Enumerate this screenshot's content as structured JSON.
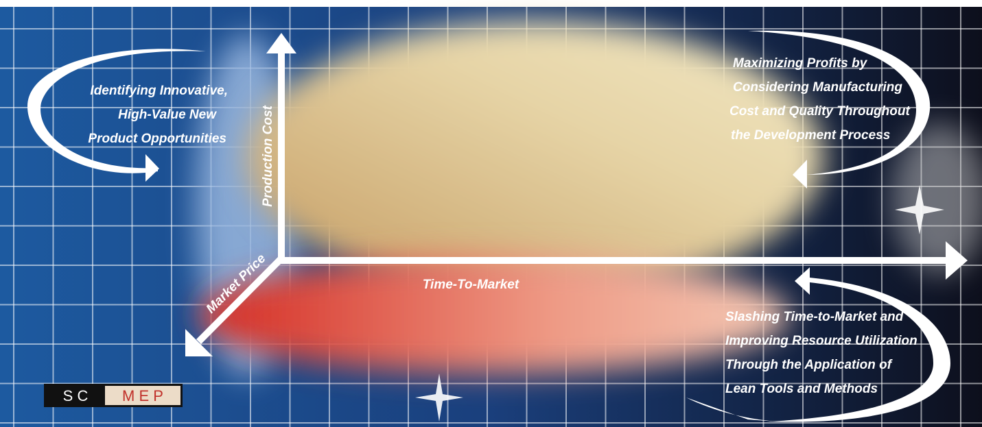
{
  "axes": {
    "y": "Production Cost",
    "x": "Time-To-Market",
    "z": "Market Price"
  },
  "callouts": [
    {
      "lines": [
        "Identifying Innovative,",
        "High-Value New",
        "Product Opportunities"
      ]
    },
    {
      "lines": [
        "Maximizing Profits by",
        "Considering Manufacturing",
        "Cost and Quality Throughout",
        "the Development Process"
      ]
    },
    {
      "lines": [
        "Slashing Time-to-Market and",
        "Improving Resource Utilization",
        "Through the Application of",
        "Lean Tools and Methods"
      ]
    }
  ],
  "logo": {
    "left": "S C",
    "right": "M E P"
  }
}
